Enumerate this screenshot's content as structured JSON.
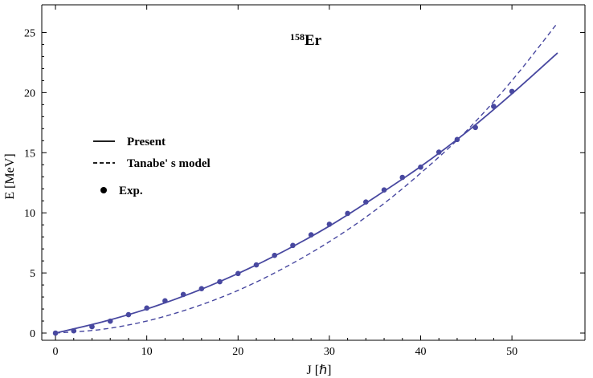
{
  "chart_data": {
    "type": "line",
    "title": "Er",
    "title_superscript": "158",
    "xlabel": "J [ℏ]",
    "ylabel": "E [MeV]",
    "xlim": [
      -1.5,
      58
    ],
    "ylim": [
      -0.6,
      27.3
    ],
    "x_ticks": [
      0,
      10,
      20,
      30,
      40,
      50
    ],
    "y_ticks": [
      0,
      5,
      10,
      15,
      20,
      25
    ],
    "grid": false,
    "legend_position": "left-middle",
    "colors": {
      "series": "#4848a0",
      "legend": "#000000",
      "axis": "#000000"
    },
    "series": [
      {
        "name": "Present",
        "style": "solid",
        "x": [
          0,
          5,
          10,
          15,
          20,
          25,
          30,
          35,
          40,
          45,
          50,
          55
        ],
        "y": [
          0,
          0.9,
          2.0,
          3.35,
          4.95,
          6.8,
          8.9,
          11.3,
          13.85,
          16.7,
          19.9,
          23.3
        ]
      },
      {
        "name": "Tanabe' s  model",
        "style": "dashed",
        "x": [
          0,
          5,
          10,
          15,
          20,
          25,
          30,
          35,
          40,
          45,
          50,
          55
        ],
        "y": [
          0,
          0.3,
          1.0,
          2.1,
          3.55,
          5.4,
          7.6,
          10.2,
          13.3,
          16.8,
          21.0,
          25.8
        ]
      },
      {
        "name": "Exp.",
        "style": "points",
        "x": [
          0,
          2,
          4,
          6,
          8,
          10,
          12,
          14,
          16,
          18,
          20,
          22,
          24,
          26,
          28,
          30,
          32,
          34,
          36,
          38,
          40,
          42,
          44,
          46,
          48,
          50
        ],
        "y": [
          0.0,
          0.19,
          0.53,
          0.99,
          1.53,
          2.08,
          2.68,
          3.21,
          3.69,
          4.27,
          4.95,
          5.67,
          6.46,
          7.29,
          8.17,
          9.05,
          9.95,
          10.9,
          11.9,
          12.95,
          13.8,
          15.05,
          16.1,
          17.1,
          18.85,
          20.1
        ]
      }
    ]
  }
}
